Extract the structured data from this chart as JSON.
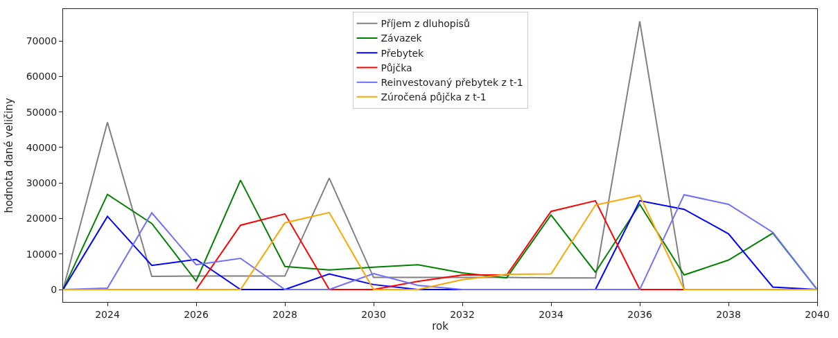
{
  "chart_data": {
    "type": "line",
    "xlabel": "rok",
    "ylabel": "hodnota dané veličiny",
    "x": [
      2023,
      2024,
      2025,
      2026,
      2027,
      2028,
      2029,
      2030,
      2031,
      2032,
      2033,
      2034,
      2035,
      2036,
      2037,
      2038,
      2039,
      2040
    ],
    "series": [
      {
        "name": "Příjem z dluhopisů",
        "color": "#808080",
        "values": [
          0,
          47100,
          3700,
          3800,
          3800,
          3800,
          31400,
          3400,
          3400,
          3400,
          3400,
          3300,
          3300,
          75500,
          0,
          0,
          0,
          0
        ]
      },
      {
        "name": "Závazek",
        "color": "#008000",
        "values": [
          0,
          26800,
          18600,
          2400,
          30800,
          6500,
          5500,
          6300,
          7000,
          4700,
          3300,
          21000,
          4900,
          24000,
          4100,
          8300,
          15900,
          0
        ]
      },
      {
        "name": "Přebytek",
        "color": "#0000ff",
        "values": [
          0,
          20600,
          6800,
          8500,
          0,
          0,
          4400,
          1400,
          0,
          0,
          0,
          0,
          0,
          25000,
          22600,
          15700,
          700,
          0
        ]
      },
      {
        "name": "Půjčka",
        "color": "#ff0000",
        "values": [
          null,
          null,
          null,
          0,
          18100,
          21300,
          0,
          0,
          2300,
          4100,
          4100,
          22000,
          25000,
          0,
          0,
          null,
          null,
          null
        ]
      },
      {
        "name": "Reinvestovaný přebytek z t-1",
        "color": "#6f6fff",
        "values": [
          0,
          400,
          21600,
          7000,
          8800,
          0,
          0,
          4500,
          1200,
          0,
          0,
          0,
          0,
          0,
          26700,
          24000,
          16100,
          0
        ]
      },
      {
        "name": "Zúročená půjčka z t-1",
        "color": "#ffa500",
        "values": [
          0,
          0,
          0,
          0,
          0,
          18800,
          21700,
          0,
          0,
          2800,
          4300,
          4400,
          23800,
          26500,
          0,
          0,
          0,
          0
        ]
      }
    ],
    "xlim": [
      2023,
      2040
    ],
    "xticks": [
      2024,
      2026,
      2028,
      2030,
      2032,
      2034,
      2036,
      2038,
      2040
    ],
    "ylim": [
      -3500,
      79000
    ],
    "yticks": [
      0,
      10000,
      20000,
      30000,
      40000,
      50000,
      60000,
      70000
    ],
    "legend": "top",
    "marker": "none",
    "line_style": "solid"
  }
}
